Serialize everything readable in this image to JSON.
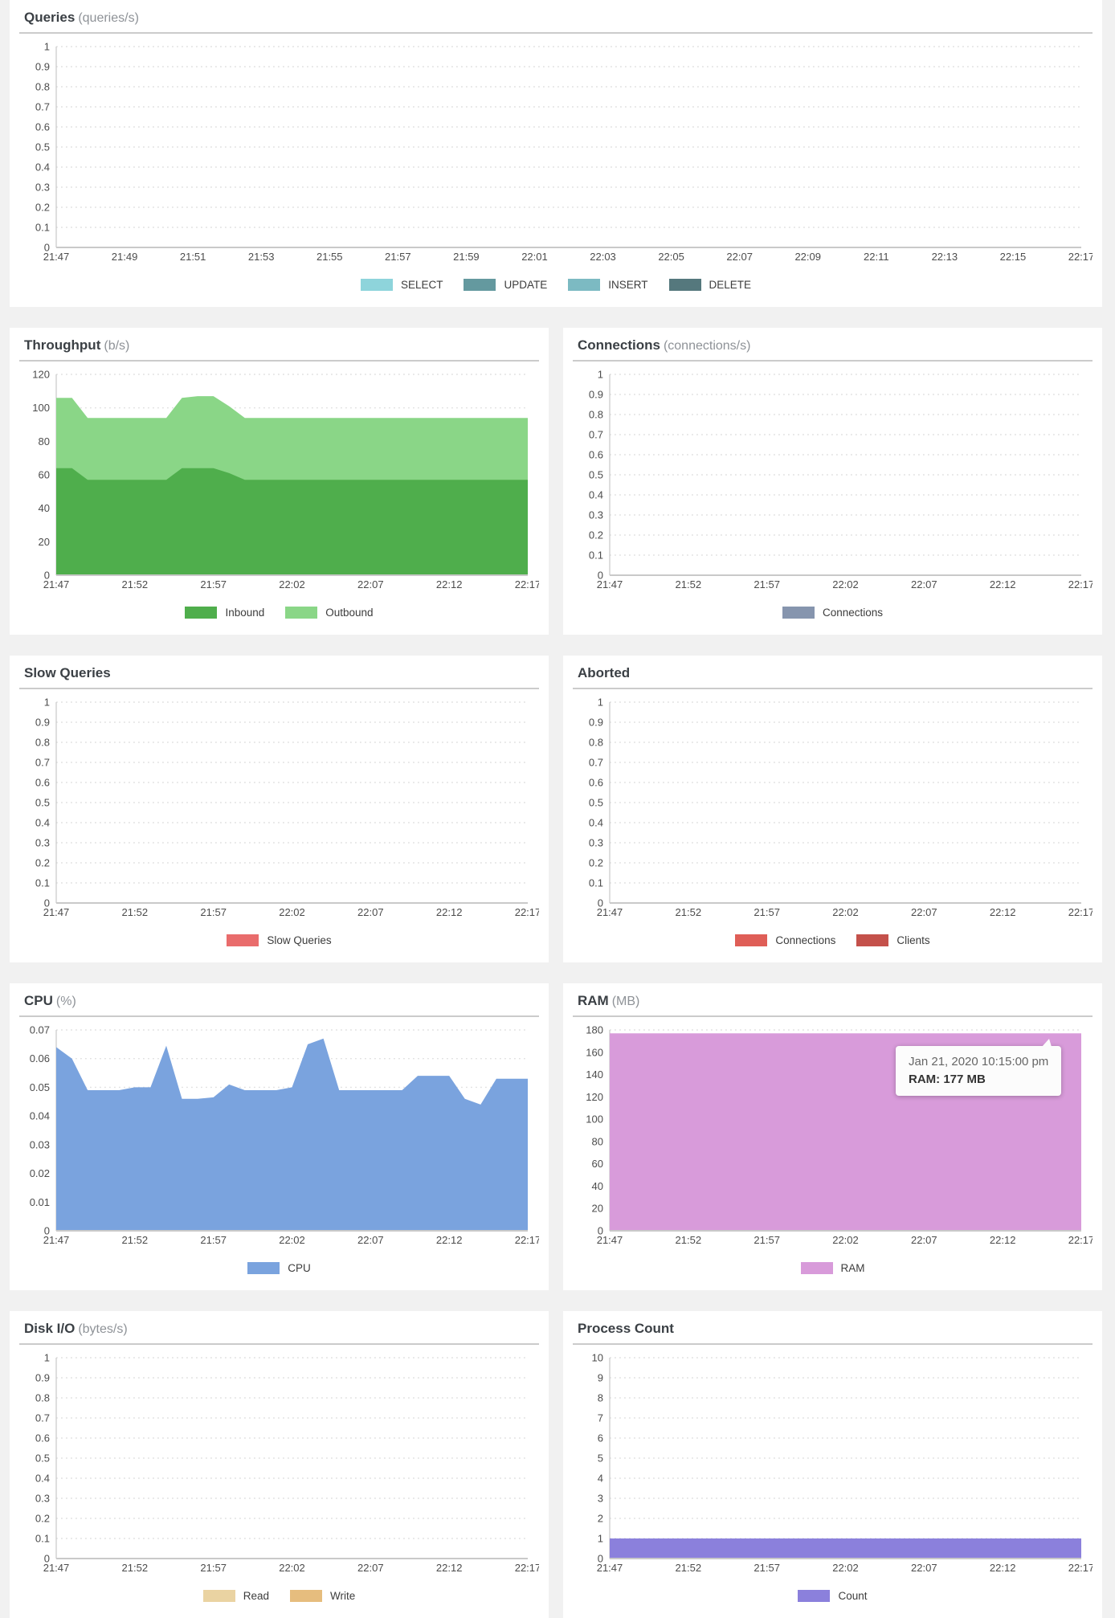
{
  "theme": {
    "panel_bg": "#ffffff",
    "page_bg": "#f1f1f1",
    "grid": "#e0e0e0",
    "axis": "#c9c9c9",
    "tick_text": "#4c4c4c",
    "title_text": "#3b4045",
    "unit_text": "#8e9297"
  },
  "chart_data": [
    {
      "id": "queries",
      "title": "Queries",
      "unit": "(queries/s)",
      "type": "area",
      "stacked": false,
      "ymax": 1,
      "grid": "dotted",
      "legend_position": "bottom",
      "yticks": [
        "1",
        "0.9",
        "0.8",
        "0.7",
        "0.6",
        "0.5",
        "0.4",
        "0.3",
        "0.2",
        "0.1",
        "0"
      ],
      "x_labels": [
        "21:47",
        "21:49",
        "21:51",
        "21:53",
        "21:55",
        "21:57",
        "21:59",
        "22:01",
        "22:03",
        "22:05",
        "22:07",
        "22:09",
        "22:11",
        "22:13",
        "22:15",
        "22:17"
      ],
      "series": [
        {
          "name": "SELECT",
          "color": "#8ed4db",
          "values": []
        },
        {
          "name": "UPDATE",
          "color": "#64999f",
          "values": []
        },
        {
          "name": "INSERT",
          "color": "#7cbac2",
          "values": []
        },
        {
          "name": "DELETE",
          "color": "#55787d",
          "values": []
        }
      ]
    },
    {
      "id": "throughput",
      "title": "Throughput",
      "unit": "(b/s)",
      "type": "area",
      "stacked": true,
      "ymax": 120,
      "grid": "dotted",
      "legend_position": "bottom",
      "yticks": [
        "120",
        "100",
        "80",
        "60",
        "40",
        "20",
        "0"
      ],
      "x_labels": [
        "21:47",
        "21:52",
        "21:57",
        "22:02",
        "22:07",
        "22:12",
        "22:17"
      ],
      "series": [
        {
          "name": "Inbound",
          "color": "#4fae4c",
          "values": [
            64,
            64,
            57,
            57,
            57,
            57,
            57,
            57,
            64,
            64,
            64,
            61,
            57,
            57,
            57,
            57,
            57,
            57,
            57,
            57,
            57,
            57,
            57,
            57,
            57,
            57,
            57,
            57,
            57,
            57,
            57
          ]
        },
        {
          "name": "Outbound",
          "color": "#8ad687",
          "values": [
            42,
            42,
            37,
            37,
            37,
            37,
            37,
            37,
            42,
            43,
            43,
            40,
            37,
            37,
            37,
            37,
            37,
            37,
            37,
            37,
            37,
            37,
            37,
            37,
            37,
            37,
            37,
            37,
            37,
            37,
            37
          ]
        }
      ]
    },
    {
      "id": "connections",
      "title": "Connections",
      "unit": "(connections/s)",
      "type": "area",
      "stacked": false,
      "ymax": 1,
      "grid": "dotted",
      "legend_position": "bottom",
      "yticks": [
        "1",
        "0.9",
        "0.8",
        "0.7",
        "0.6",
        "0.5",
        "0.4",
        "0.3",
        "0.2",
        "0.1",
        "0"
      ],
      "x_labels": [
        "21:47",
        "21:52",
        "21:57",
        "22:02",
        "22:07",
        "22:12",
        "22:17"
      ],
      "series": [
        {
          "name": "Connections",
          "color": "#8695ae",
          "values": []
        }
      ]
    },
    {
      "id": "slow-queries",
      "title": "Slow Queries",
      "unit": "",
      "type": "area",
      "stacked": false,
      "ymax": 1,
      "grid": "dotted",
      "legend_position": "bottom",
      "yticks": [
        "1",
        "0.9",
        "0.8",
        "0.7",
        "0.6",
        "0.5",
        "0.4",
        "0.3",
        "0.2",
        "0.1",
        "0"
      ],
      "x_labels": [
        "21:47",
        "21:52",
        "21:57",
        "22:02",
        "22:07",
        "22:12",
        "22:17"
      ],
      "series": [
        {
          "name": "Slow Queries",
          "color": "#e96c6c",
          "values": []
        }
      ]
    },
    {
      "id": "aborted",
      "title": "Aborted",
      "unit": "",
      "type": "area",
      "stacked": false,
      "ymax": 1,
      "grid": "dotted",
      "legend_position": "bottom",
      "yticks": [
        "1",
        "0.9",
        "0.8",
        "0.7",
        "0.6",
        "0.5",
        "0.4",
        "0.3",
        "0.2",
        "0.1",
        "0"
      ],
      "x_labels": [
        "21:47",
        "21:52",
        "21:57",
        "22:02",
        "22:07",
        "22:12",
        "22:17"
      ],
      "series": [
        {
          "name": "Connections",
          "color": "#df5e57",
          "values": []
        },
        {
          "name": "Clients",
          "color": "#c4514b",
          "values": []
        }
      ]
    },
    {
      "id": "cpu",
      "title": "CPU",
      "unit": "(%)",
      "type": "area",
      "stacked": false,
      "ymax": 0.07,
      "grid": "dotted",
      "legend_position": "bottom",
      "yticks": [
        "0.07",
        "0.06",
        "0.05",
        "0.04",
        "0.03",
        "0.02",
        "0.01",
        "0"
      ],
      "x_labels": [
        "21:47",
        "21:52",
        "21:57",
        "22:02",
        "22:07",
        "22:12",
        "22:17"
      ],
      "series": [
        {
          "name": "CPU",
          "color": "#7aa3de",
          "values": [
            0.064,
            0.06,
            0.049,
            0.049,
            0.049,
            0.05,
            0.05,
            0.0645,
            0.046,
            0.046,
            0.0465,
            0.051,
            0.049,
            0.049,
            0.049,
            0.05,
            0.065,
            0.067,
            0.049,
            0.049,
            0.049,
            0.049,
            0.049,
            0.054,
            0.054,
            0.054,
            0.046,
            0.044,
            0.053,
            0.053,
            0.053
          ]
        }
      ]
    },
    {
      "id": "ram",
      "title": "RAM",
      "unit": "(MB)",
      "type": "area",
      "stacked": false,
      "ymax": 180,
      "grid": "dotted",
      "legend_position": "bottom",
      "yticks": [
        "180",
        "160",
        "140",
        "120",
        "100",
        "80",
        "60",
        "40",
        "20",
        "0"
      ],
      "x_labels": [
        "21:47",
        "21:52",
        "21:57",
        "22:02",
        "22:07",
        "22:12",
        "22:17"
      ],
      "series": [
        {
          "name": "RAM",
          "color": "#d89bda",
          "values": [
            177,
            177,
            177,
            177,
            177,
            177,
            177
          ]
        }
      ],
      "tooltip": {
        "date": "Jan 21, 2020 10:15:00 pm",
        "value": "RAM: 177 MB"
      }
    },
    {
      "id": "disk-io",
      "title": "Disk I/O",
      "unit": "(bytes/s)",
      "type": "area",
      "stacked": false,
      "ymax": 1,
      "grid": "dotted",
      "legend_position": "bottom",
      "yticks": [
        "1",
        "0.9",
        "0.8",
        "0.7",
        "0.6",
        "0.5",
        "0.4",
        "0.3",
        "0.2",
        "0.1",
        "0"
      ],
      "x_labels": [
        "21:47",
        "21:52",
        "21:57",
        "22:02",
        "22:07",
        "22:12",
        "22:17"
      ],
      "series": [
        {
          "name": "Read",
          "color": "#ead3a2",
          "values": []
        },
        {
          "name": "Write",
          "color": "#e6bd7e",
          "values": []
        }
      ]
    },
    {
      "id": "process-count",
      "title": "Process Count",
      "unit": "",
      "type": "area",
      "stacked": false,
      "ymax": 10,
      "grid": "dotted",
      "legend_position": "bottom",
      "yticks": [
        "10",
        "9",
        "8",
        "7",
        "6",
        "5",
        "4",
        "3",
        "2",
        "1",
        "0"
      ],
      "x_labels": [
        "21:47",
        "21:52",
        "21:57",
        "22:02",
        "22:07",
        "22:12",
        "22:17"
      ],
      "series": [
        {
          "name": "Count",
          "color": "#8b80dc",
          "values": [
            1,
            1,
            1,
            1,
            1,
            1,
            1
          ]
        }
      ]
    }
  ]
}
